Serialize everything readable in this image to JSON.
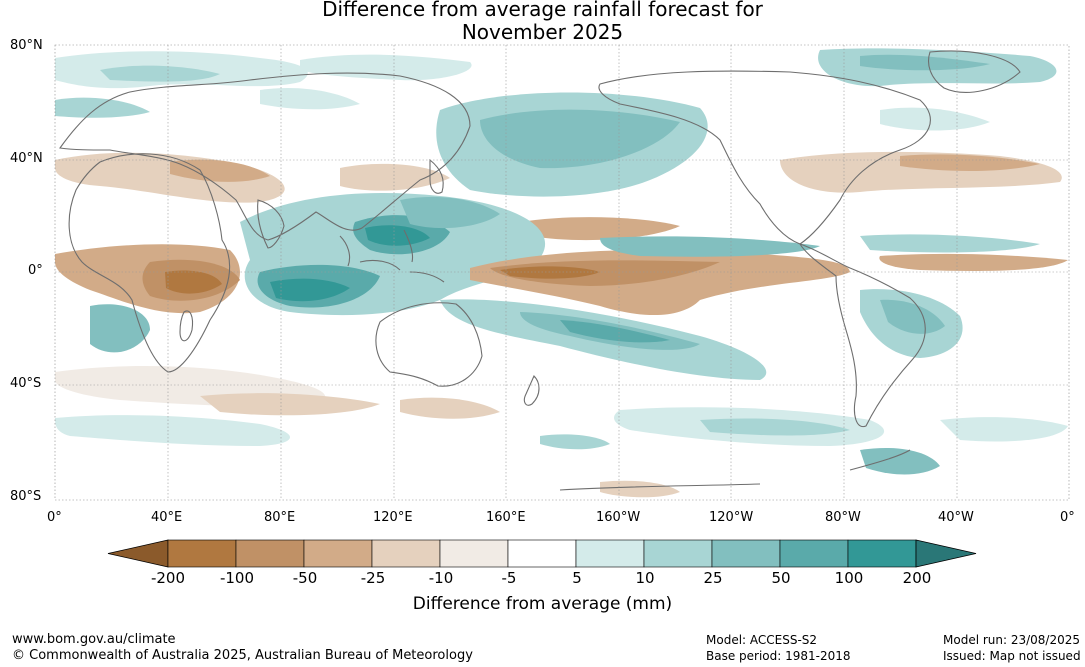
{
  "title": [
    "Difference from average rainfall forecast for",
    "November 2025"
  ],
  "lat_labels": [
    "80°N",
    "40°N",
    "0°",
    "40°S",
    "80°S"
  ],
  "lon_labels": [
    "0°",
    "40°E",
    "80°E",
    "120°E",
    "160°E",
    "160°W",
    "120°W",
    "80°W",
    "40°W",
    "0°"
  ],
  "colorbar": {
    "label": "Difference from average (mm)",
    "ticks": [
      "-200",
      "-100",
      "-50",
      "-25",
      "-10",
      "-5",
      "5",
      "10",
      "25",
      "50",
      "100",
      "200"
    ],
    "colors": [
      "#8b5a2b",
      "#b07840",
      "#c09166",
      "#d2ab88",
      "#e5d1be",
      "#f1ebe5",
      "#ffffff",
      "#d4ebea",
      "#a8d5d4",
      "#82bfbf",
      "#5aaaaa",
      "#329896",
      "#2a7777"
    ]
  },
  "footer": {
    "left_line1": "www.bom.gov.au/climate",
    "left_line2": "© Commonwealth of Australia 2025, Australian Bureau of Meteorology",
    "model": "Model: ACCESS-S2",
    "base_period": "Base period: 1981-2018",
    "model_run": "Model run: 23/08/2025",
    "issued": "Issued: Map not issued"
  }
}
